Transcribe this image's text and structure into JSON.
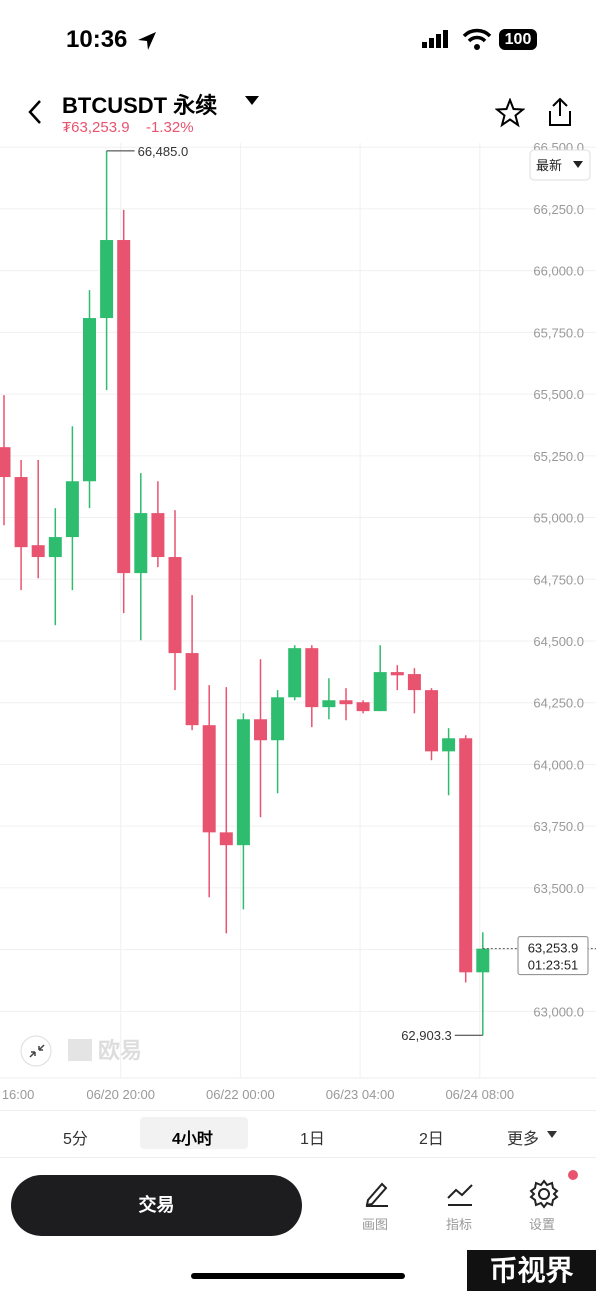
{
  "status": {
    "time": "10:36",
    "battery": "100"
  },
  "header": {
    "symbol": "BTCUSDT 永续",
    "price": "₮63,253.9",
    "change": "-1.32%"
  },
  "chart_data": {
    "type": "candlestick",
    "up_color": "#2ebd6f",
    "down_color": "#e8536f",
    "ylim": [
      62730,
      66517
    ],
    "yticks": [
      {
        "value": 63000,
        "label": "63,000.0"
      },
      {
        "value": 63250,
        "label": "63,250.0"
      },
      {
        "value": 63500,
        "label": "63,500.0"
      },
      {
        "value": 63750,
        "label": "63,750.0"
      },
      {
        "value": 64000,
        "label": "64,000.0"
      },
      {
        "value": 64250,
        "label": "64,250.0"
      },
      {
        "value": 64500,
        "label": "64,500.0"
      },
      {
        "value": 64750,
        "label": "64,750.0"
      },
      {
        "value": 65000,
        "label": "65,000.0"
      },
      {
        "value": 65250,
        "label": "65,250.0"
      },
      {
        "value": 65500,
        "label": "65,500.0"
      },
      {
        "value": 65750,
        "label": "65,750.0"
      },
      {
        "value": 66000,
        "label": "66,000.0"
      },
      {
        "value": 66250,
        "label": "66,250.0"
      },
      {
        "value": 66500,
        "label": "66,500.0"
      }
    ],
    "grid": true,
    "x_labels": [
      "16:00",
      "06/20 20:00",
      "06/22 00:00",
      "06/23 04:00",
      "06/24 08:00"
    ],
    "open": [
      65285,
      65164,
      64888,
      64840,
      64921,
      65147,
      65808,
      66124,
      64775,
      65018,
      64840,
      64451,
      64159,
      63725,
      63673,
      64183,
      64098,
      64272,
      64471,
      64232,
      64260,
      64252,
      64216,
      64374,
      64366,
      64301,
      64053,
      64106,
      63158
    ],
    "high": [
      65496,
      65233,
      65233,
      65038,
      65370,
      65921,
      66485,
      66246,
      65180,
      65147,
      65030,
      64686,
      64321,
      64313,
      64207,
      64426,
      64301,
      64483,
      64483,
      64349,
      64309,
      64260,
      64483,
      64402,
      64390,
      64309,
      64147,
      64118,
      63320
    ],
    "low": [
      64969,
      64706,
      64754,
      64564,
      64706,
      65038,
      65516,
      64613,
      64503,
      64799,
      64301,
      64139,
      63462,
      63316,
      63413,
      63786,
      63883,
      64260,
      64151,
      64183,
      64179,
      64207,
      64216,
      64301,
      64207,
      64017,
      63875,
      63117,
      62903.3
    ],
    "close": [
      65164,
      64880,
      64840,
      64921,
      65147,
      65808,
      66124,
      64775,
      65018,
      64840,
      64451,
      64159,
      63725,
      63673,
      64183,
      64098,
      64272,
      64471,
      64232,
      64260,
      64244,
      64216,
      64374,
      64361,
      64301,
      64053,
      64106,
      63158,
      63253.9
    ],
    "high_label": "66,485.0",
    "low_label": "62,903.3",
    "last_price_label": "63,253.9",
    "countdown": "01:23:51",
    "price_mode": "最新",
    "watermark": "欧易"
  },
  "intervals": [
    "5分",
    "4小时",
    "1日",
    "2日",
    "更多"
  ],
  "toolbar": {
    "trade": "交易",
    "draw": "画图",
    "indicators": "指标",
    "settings": "设置"
  },
  "corner_watermark": "币视界"
}
